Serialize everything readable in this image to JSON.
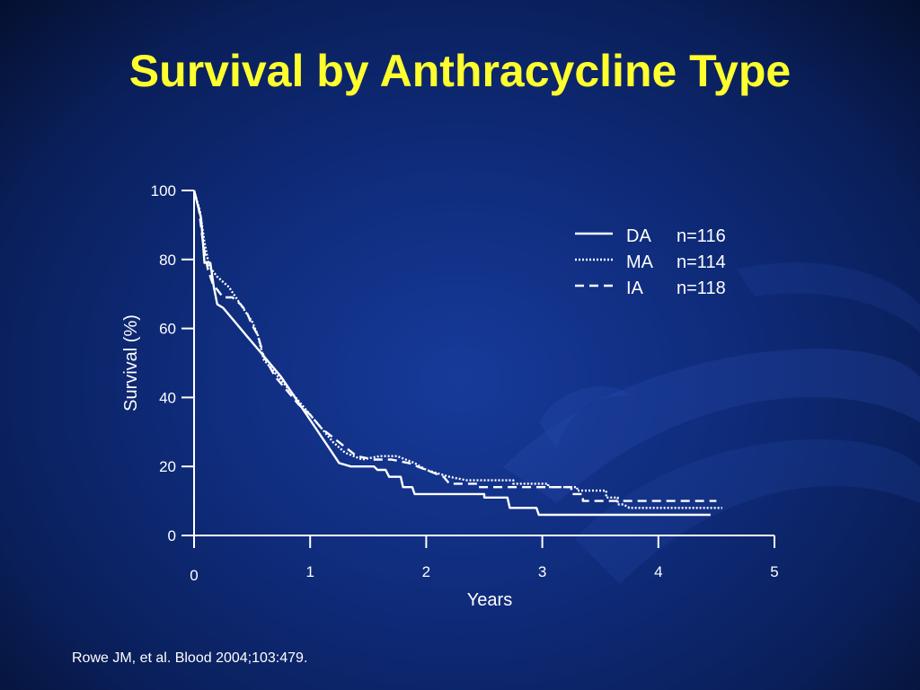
{
  "slide": {
    "title": "Survival by Anthracycline Type",
    "citation": "Rowe JM, et al. Blood 2004;103:479."
  },
  "colors": {
    "title": "#ffff2e",
    "text": "#ffffff",
    "line": "#ffffff"
  },
  "chart_data": {
    "type": "line",
    "title": "",
    "xlabel": "Years",
    "ylabel": "Survival (%)",
    "xlim": [
      0,
      5
    ],
    "ylim": [
      0,
      100
    ],
    "x_ticks": [
      "0",
      "1",
      "2",
      "3",
      "4",
      "5"
    ],
    "y_ticks": [
      "0",
      "20",
      "40",
      "60",
      "80",
      "100"
    ],
    "grid": false,
    "legend_position": "top-right",
    "series": [
      {
        "name": "DA",
        "n_label": "n=116",
        "style": "solid",
        "points": [
          [
            0,
            100
          ],
          [
            0.03,
            96
          ],
          [
            0.06,
            92
          ],
          [
            0.09,
            79
          ],
          [
            0.14,
            79
          ],
          [
            0.17,
            72
          ],
          [
            0.2,
            67
          ],
          [
            0.25,
            66
          ],
          [
            0.35,
            62
          ],
          [
            0.45,
            58
          ],
          [
            0.55,
            54
          ],
          [
            0.65,
            50
          ],
          [
            0.75,
            46
          ],
          [
            0.85,
            41
          ],
          [
            0.95,
            36
          ],
          [
            1.05,
            31
          ],
          [
            1.15,
            26
          ],
          [
            1.25,
            21
          ],
          [
            1.35,
            20
          ],
          [
            1.55,
            20
          ],
          [
            1.58,
            19
          ],
          [
            1.65,
            19
          ],
          [
            1.68,
            17
          ],
          [
            1.78,
            17
          ],
          [
            1.8,
            14
          ],
          [
            1.88,
            14
          ],
          [
            1.9,
            12
          ],
          [
            2.5,
            12
          ],
          [
            2.5,
            11
          ],
          [
            2.7,
            11
          ],
          [
            2.72,
            8
          ],
          [
            2.95,
            8
          ],
          [
            2.97,
            6
          ],
          [
            4.45,
            6
          ]
        ]
      },
      {
        "name": "MA",
        "n_label": "n=114",
        "style": "dotted",
        "points": [
          [
            0,
            100
          ],
          [
            0.05,
            94
          ],
          [
            0.09,
            85
          ],
          [
            0.13,
            78
          ],
          [
            0.2,
            75
          ],
          [
            0.3,
            72
          ],
          [
            0.4,
            67
          ],
          [
            0.5,
            62
          ],
          [
            0.55,
            58
          ],
          [
            0.6,
            51
          ],
          [
            0.7,
            47
          ],
          [
            0.8,
            43
          ],
          [
            0.9,
            39
          ],
          [
            1.0,
            35
          ],
          [
            1.1,
            31
          ],
          [
            1.2,
            27
          ],
          [
            1.3,
            24
          ],
          [
            1.45,
            22
          ],
          [
            1.6,
            23
          ],
          [
            1.75,
            23
          ],
          [
            1.9,
            21
          ],
          [
            2.0,
            19
          ],
          [
            2.1,
            18
          ],
          [
            2.2,
            17
          ],
          [
            2.35,
            16
          ],
          [
            2.75,
            16
          ],
          [
            2.75,
            15
          ],
          [
            3.05,
            15
          ],
          [
            3.05,
            14
          ],
          [
            3.3,
            14
          ],
          [
            3.3,
            13
          ],
          [
            3.55,
            13
          ],
          [
            3.55,
            11
          ],
          [
            3.65,
            11
          ],
          [
            3.65,
            9
          ],
          [
            3.7,
            9
          ],
          [
            3.75,
            8
          ],
          [
            4.55,
            8
          ]
        ]
      },
      {
        "name": "IA",
        "n_label": "n=118",
        "style": "dashed",
        "points": [
          [
            0,
            100
          ],
          [
            0.04,
            95
          ],
          [
            0.08,
            84
          ],
          [
            0.12,
            77
          ],
          [
            0.16,
            73
          ],
          [
            0.25,
            69
          ],
          [
            0.33,
            69
          ],
          [
            0.4,
            67
          ],
          [
            0.45,
            65
          ],
          [
            0.5,
            61
          ],
          [
            0.55,
            58
          ],
          [
            0.6,
            52
          ],
          [
            0.7,
            46
          ],
          [
            0.8,
            42
          ],
          [
            0.9,
            38
          ],
          [
            1.0,
            35
          ],
          [
            1.1,
            31
          ],
          [
            1.25,
            27
          ],
          [
            1.4,
            23
          ],
          [
            1.55,
            22
          ],
          [
            1.7,
            22
          ],
          [
            1.85,
            21
          ],
          [
            2.0,
            19
          ],
          [
            2.15,
            17
          ],
          [
            2.2,
            15
          ],
          [
            2.45,
            15
          ],
          [
            2.45,
            14
          ],
          [
            3.25,
            14
          ],
          [
            3.25,
            12
          ],
          [
            3.35,
            12
          ],
          [
            3.35,
            10
          ],
          [
            4.5,
            10
          ]
        ]
      }
    ]
  }
}
